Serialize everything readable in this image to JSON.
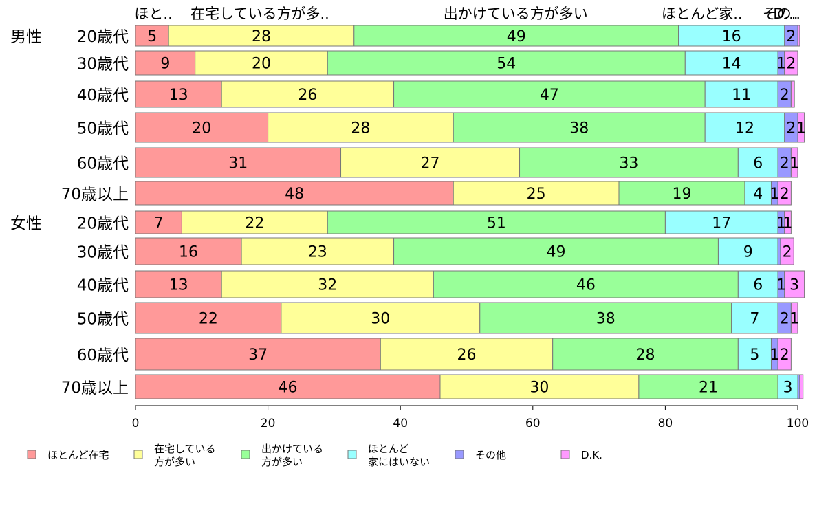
{
  "chart_data": {
    "type": "bar",
    "orientation": "horizontal",
    "stacked": true,
    "xlim": [
      0,
      100
    ],
    "x_ticks": [
      "0",
      "20",
      "40",
      "60",
      "80",
      "100"
    ],
    "top_labels": [
      "ほと..",
      "在宅している方が多..",
      "出かけている方が多い",
      "ほとんど家..",
      "その..",
      "D..."
    ],
    "group_labels": [
      "男性",
      "女性"
    ],
    "categories": [
      "20歳代",
      "30歳代",
      "40歳代",
      "50歳代",
      "60歳代",
      "70歳以上",
      "20歳代",
      "30歳代",
      "40歳代",
      "50歳代",
      "60歳代",
      "70歳以上"
    ],
    "series": [
      {
        "name": "ほとんど在宅",
        "legend_lines": [
          "ほとんど在宅"
        ],
        "color": "#ff9999",
        "values": [
          5,
          9,
          13,
          20,
          31,
          48,
          7,
          16,
          13,
          22,
          37,
          46
        ],
        "labels": [
          "5",
          "9",
          "13",
          "20",
          "31",
          "48",
          "7",
          "16",
          "13",
          "22",
          "37",
          "46"
        ]
      },
      {
        "name": "在宅している方が多い",
        "legend_lines": [
          "在宅している",
          "方が多い"
        ],
        "color": "#ffff99",
        "values": [
          28,
          20,
          26,
          28,
          27,
          25,
          22,
          23,
          32,
          30,
          26,
          30
        ],
        "labels": [
          "28",
          "20",
          "26",
          "28",
          "27",
          "25",
          "22",
          "23",
          "32",
          "30",
          "26",
          "30"
        ]
      },
      {
        "name": "出かけている方が多い",
        "legend_lines": [
          "出かけている",
          "方が多い"
        ],
        "color": "#99ff99",
        "values": [
          49,
          54,
          47,
          38,
          33,
          19,
          51,
          49,
          46,
          38,
          28,
          21
        ],
        "labels": [
          "49",
          "54",
          "47",
          "38",
          "33",
          "19",
          "51",
          "49",
          "46",
          "38",
          "28",
          "21"
        ]
      },
      {
        "name": "ほとんど家にはいない",
        "legend_lines": [
          "ほとんど",
          "家にはいない"
        ],
        "color": "#99ffff",
        "values": [
          16,
          14,
          11,
          12,
          6,
          4,
          17,
          9,
          6,
          7,
          5,
          3
        ],
        "labels": [
          "16",
          "14",
          "11",
          "12",
          "6",
          "4",
          "17",
          "9",
          "6",
          "7",
          "5",
          "3"
        ]
      },
      {
        "name": "その他",
        "legend_lines": [
          "その他"
        ],
        "color": "#9999ff",
        "values": [
          2,
          1,
          2,
          2,
          2,
          1,
          1,
          0.4,
          1,
          2,
          1,
          0.3
        ],
        "labels": [
          "2",
          "1",
          "2",
          "2",
          "2",
          "1",
          "1",
          "",
          "1",
          "2",
          "1",
          ""
        ]
      },
      {
        "name": "D.K.",
        "legend_lines": [
          "D.K."
        ],
        "color": "#ff99ff",
        "values": [
          0.3,
          2,
          0.5,
          1,
          1,
          2,
          1,
          2,
          3,
          1,
          2,
          0.5
        ],
        "labels": [
          "",
          "2",
          "",
          "1",
          "1",
          "2",
          "1",
          "2",
          "3",
          "1",
          "2",
          ""
        ]
      }
    ]
  }
}
